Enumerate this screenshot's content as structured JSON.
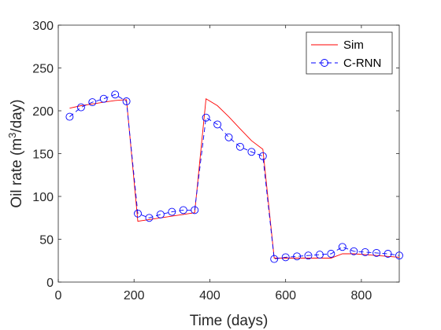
{
  "chart_data": {
    "type": "line",
    "xlabel": "Time (days)",
    "ylabel": {
      "prefix": "Oil rate (m",
      "superscript": "3",
      "suffix": "/day)"
    },
    "xlim": [
      0,
      900
    ],
    "ylim": [
      0,
      300
    ],
    "xticks": [
      0,
      200,
      400,
      600,
      800
    ],
    "yticks": [
      0,
      50,
      100,
      150,
      200,
      250,
      300
    ],
    "grid": false,
    "legend_position": "top-right",
    "series": [
      {
        "name": "Sim",
        "color": "#ff0000",
        "line_style": "solid",
        "marker": "none",
        "x": [
          30,
          60,
          90,
          120,
          150,
          180,
          210,
          240,
          270,
          300,
          330,
          360,
          390,
          420,
          450,
          480,
          510,
          540,
          570,
          600,
          630,
          660,
          690,
          720,
          750,
          780,
          810,
          840,
          870,
          900
        ],
        "y": [
          203,
          206,
          208,
          210,
          212,
          213,
          71,
          73,
          75,
          77,
          79,
          81,
          214,
          206,
          193,
          179,
          165,
          155,
          28,
          28,
          28,
          28,
          28,
          28,
          33,
          33,
          32,
          31,
          30,
          29
        ]
      },
      {
        "name": "C-RNN",
        "color": "#0000ff",
        "line_style": "dashed",
        "marker": "circle",
        "x": [
          30,
          60,
          90,
          120,
          150,
          180,
          210,
          240,
          270,
          300,
          330,
          360,
          390,
          420,
          450,
          480,
          510,
          540,
          570,
          600,
          630,
          660,
          690,
          720,
          750,
          780,
          810,
          840,
          870,
          900
        ],
        "y": [
          193,
          204,
          210,
          214,
          219,
          211,
          80,
          75,
          79,
          82,
          84,
          84,
          192,
          184,
          169,
          158,
          152,
          147,
          27,
          29,
          30,
          31,
          32,
          33,
          41,
          36,
          35,
          34,
          33,
          31
        ]
      }
    ]
  }
}
